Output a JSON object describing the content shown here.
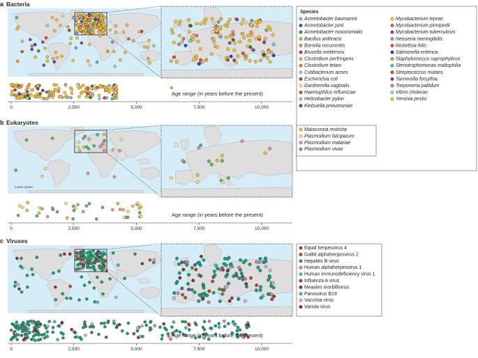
{
  "panels": [
    {
      "letter": "a",
      "title": "Bacteria",
      "axis_label": "Age range (in years before the present)",
      "ticks": [
        "0",
        "2,500",
        "5,000",
        "7,500",
        "10,000"
      ],
      "legend_title": "Species",
      "legend_col1": [
        {
          "name": "Acinetobacter baumannii",
          "color": "#8fb3d6"
        },
        {
          "name": "Acinetobacter junii",
          "color": "#2b5f9e"
        },
        {
          "name": "Acinetobacter nosocomialis",
          "color": "#4d8a3f"
        },
        {
          "name": "Bacillus anthracis",
          "color": "#8ec27a"
        },
        {
          "name": "Borrelia recurrentis",
          "color": "#e08a82"
        },
        {
          "name": "Brucella melitensis",
          "color": "#c0392b"
        },
        {
          "name": "Clostridium perfringens",
          "color": "#f2a65a"
        },
        {
          "name": "Clostridium tetani",
          "color": "#e67e22"
        },
        {
          "name": "Cutibacterium acnes",
          "color": "#c9b3dd"
        },
        {
          "name": "Escherichia coli",
          "color": "#7d4e9a"
        },
        {
          "name": "Gardnerella vaginalis",
          "color": "#f5e680"
        },
        {
          "name": "Haemophilus influenzae",
          "color": "#b5651d"
        },
        {
          "name": "Helicobacter pylori",
          "color": "#9ecae1"
        },
        {
          "name": "Klebsiella pneumoniae",
          "color": "#2e7d32"
        }
      ],
      "legend_col2": [
        {
          "name": "Mycobacterium leprae",
          "color": "#f4c430"
        },
        {
          "name": "Mycobacterium pinnipedii",
          "color": "#a67c52"
        },
        {
          "name": "Mycobacterium tuberculosis",
          "color": "#8e44ad"
        },
        {
          "name": "Neisseria meningitidis",
          "color": "#66bb6a"
        },
        {
          "name": "Rickettsia felis",
          "color": "#e74c3c"
        },
        {
          "name": "Salmonella enterica",
          "color": "#1f4e9a"
        },
        {
          "name": "Staphylococcus saprophyticus",
          "color": "#f39c12"
        },
        {
          "name": "Stenotrophomonas maltophilia",
          "color": "#5dade2"
        },
        {
          "name": "Streptococcus mutans",
          "color": "#d35400"
        },
        {
          "name": "Tannerella forsythia",
          "color": "#7d3c98"
        },
        {
          "name": "Treponema pallidum",
          "color": "#ec7063"
        },
        {
          "name": "Vibrio cholerae",
          "color": "#a9cce3"
        },
        {
          "name": "Yersinia pestis",
          "color": "#f7c13b"
        }
      ]
    },
    {
      "letter": "b",
      "title": "Eukaryotes",
      "axis_label": "Age range (in years before the present)",
      "ticks": [
        "0",
        "2,500",
        "5,000",
        "7,500",
        "10,000"
      ],
      "map_note": "Lorem ipsum",
      "legend_col1": [
        {
          "name": "Malassezia restricta",
          "color": "#f4b942"
        },
        {
          "name": "Plasmodium falciparum",
          "color": "#f2e96b"
        },
        {
          "name": "Plasmodium malariae",
          "color": "#e78fb3"
        },
        {
          "name": "Plasmodium vivax",
          "color": "#5cb85c"
        }
      ]
    },
    {
      "letter": "c",
      "title": "Viruses",
      "axis_label": "Age range (in years before the present)",
      "ticks": [
        "0",
        "2,500",
        "5,000",
        "7,500",
        "10,000"
      ],
      "legend_col1": [
        {
          "name": "Equid herpesvirus 4",
          "color": "#6a4c93"
        },
        {
          "name": "Gallid alphaherpesvirus 2",
          "color": "#b0502c"
        },
        {
          "name": "Hepatitis B virus",
          "color": "#1b9e77"
        },
        {
          "name": "Human alphaherpesvirus 1",
          "color": "#e377a5"
        },
        {
          "name": "Human immunodeficiency virus 1",
          "color": "#7fa8d8"
        },
        {
          "name": "Influenza A virus",
          "color": "#c0392b"
        },
        {
          "name": "Measles morbillivirus",
          "color": "#7b3f1d"
        },
        {
          "name": "Parvovirus B19",
          "color": "#48b6c9"
        },
        {
          "name": "Vaccinia virus",
          "color": "#d4a9d9"
        },
        {
          "name": "Variola virus",
          "color": "#8b2e2e"
        }
      ]
    }
  ]
}
